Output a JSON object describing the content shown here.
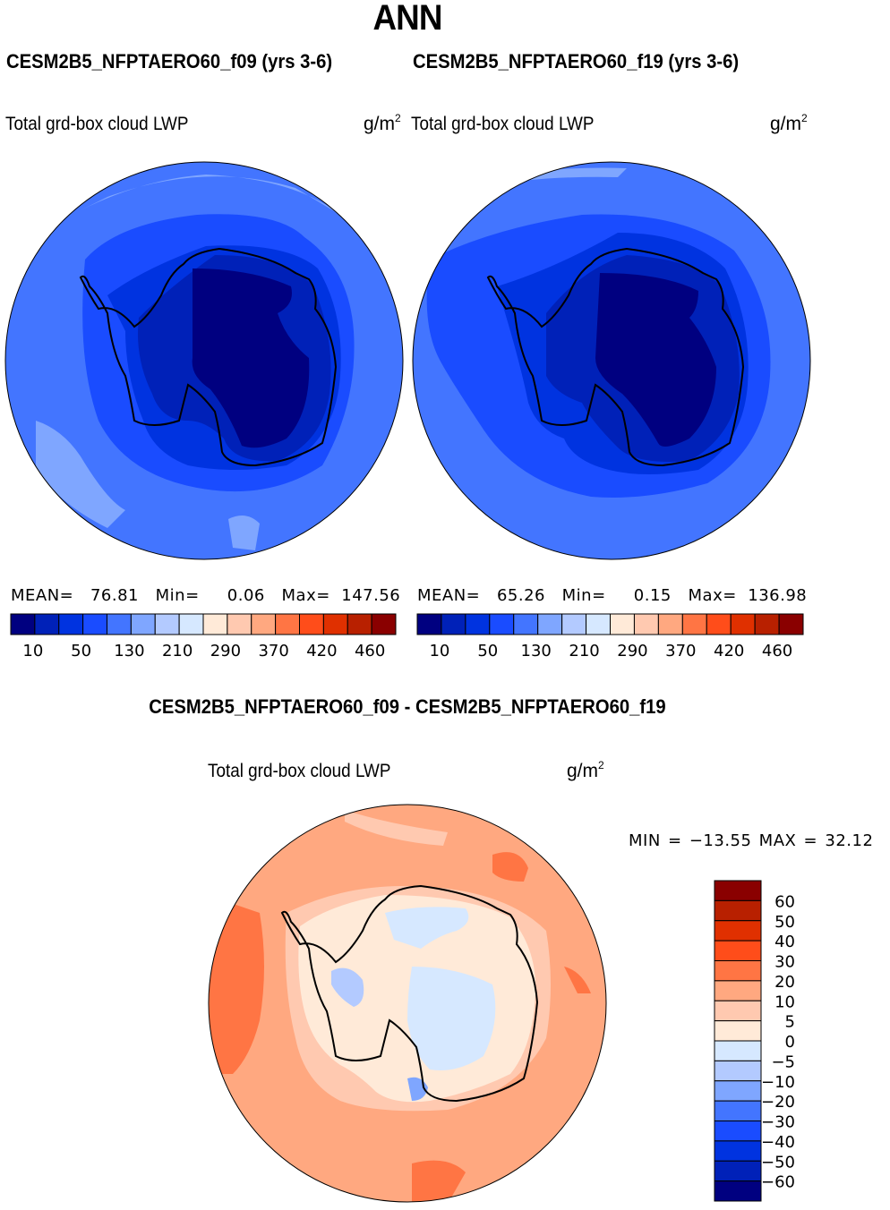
{
  "header": {
    "title": "ANN"
  },
  "panels": [
    {
      "case_title": "CESM2B5_NFPTAERO60_f09 (yrs 3-6)",
      "variable": "Total grd-box cloud LWP",
      "units_base": "g/m",
      "units_exp": "2",
      "stats": {
        "mean_label": "MEAN=",
        "mean": "76.81",
        "min_label": "Min=",
        "min": "0.06",
        "max_label": "Max=",
        "max": "147.56"
      }
    },
    {
      "case_title": "CESM2B5_NFPTAERO60_f19 (yrs 3-6)",
      "variable": "Total grd-box cloud LWP",
      "units_base": "g/m",
      "units_exp": "2",
      "stats": {
        "mean_label": "MEAN=",
        "mean": "65.26",
        "min_label": "Min=",
        "min": "0.15",
        "max_label": "Max=",
        "max": "136.98"
      }
    }
  ],
  "difference": {
    "title": "CESM2B5_NFPTAERO60_f09 - CESM2B5_NFPTAERO60_f19",
    "variable": "Total grd-box cloud LWP",
    "units_base": "g/m",
    "units_exp": "2",
    "minmax": "MIN = −13.55 MAX =   32.12"
  },
  "chart_data": [
    {
      "type": "heatmap",
      "projection": "south-polar-stereographic",
      "title": "CESM2B5_NFPTAERO60_f09 (yrs 3-6)",
      "variable": "Total grd-box cloud LWP",
      "units": "g/m^2",
      "mean": 76.81,
      "min": 0.06,
      "max": 147.56,
      "colorbar": {
        "orientation": "horizontal",
        "colors": [
          "#000080",
          "#0021b8",
          "#0033e0",
          "#1a4cff",
          "#4375ff",
          "#7fa6ff",
          "#b3caff",
          "#d6e8ff",
          "#ffead8",
          "#ffc9b0",
          "#ffa880",
          "#ff7544",
          "#ff4d1a",
          "#e03000",
          "#b82000",
          "#8a0000"
        ],
        "tick_labels": [
          "10",
          "50",
          "130",
          "210",
          "290",
          "370",
          "420",
          "460"
        ]
      }
    },
    {
      "type": "heatmap",
      "projection": "south-polar-stereographic",
      "title": "CESM2B5_NFPTAERO60_f19 (yrs 3-6)",
      "variable": "Total grd-box cloud LWP",
      "units": "g/m^2",
      "mean": 65.26,
      "min": 0.15,
      "max": 136.98,
      "colorbar": {
        "orientation": "horizontal",
        "colors": [
          "#000080",
          "#0021b8",
          "#0033e0",
          "#1a4cff",
          "#4375ff",
          "#7fa6ff",
          "#b3caff",
          "#d6e8ff",
          "#ffead8",
          "#ffc9b0",
          "#ffa880",
          "#ff7544",
          "#ff4d1a",
          "#e03000",
          "#b82000",
          "#8a0000"
        ],
        "tick_labels": [
          "10",
          "50",
          "130",
          "210",
          "290",
          "370",
          "420",
          "460"
        ]
      }
    },
    {
      "type": "heatmap",
      "projection": "south-polar-stereographic",
      "title": "CESM2B5_NFPTAERO60_f09 - CESM2B5_NFPTAERO60_f19",
      "variable": "Total grd-box cloud LWP",
      "units": "g/m^2",
      "min": -13.55,
      "max": 32.12,
      "colorbar": {
        "orientation": "vertical",
        "colors_top_to_bottom": [
          "#8a0000",
          "#b82000",
          "#e03000",
          "#ff4d1a",
          "#ff7544",
          "#ffa880",
          "#ffc9b0",
          "#ffead8",
          "#d6e8ff",
          "#b3caff",
          "#7fa6ff",
          "#4375ff",
          "#1a4cff",
          "#0033e0",
          "#0021b8",
          "#000080"
        ],
        "tick_labels_top_to_bottom": [
          "60",
          "50",
          "40",
          "30",
          "20",
          "10",
          "5",
          "0",
          "−5",
          "−10",
          "−20",
          "−30",
          "−40",
          "−50",
          "−60"
        ]
      }
    }
  ]
}
